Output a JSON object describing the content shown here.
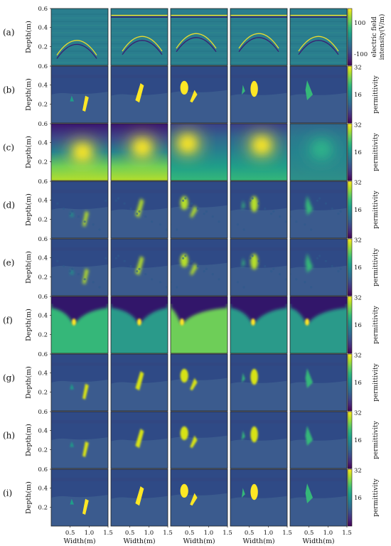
{
  "figure": {
    "colors": {
      "viridis": [
        "#440154",
        "#482878",
        "#3e4989",
        "#31688e",
        "#26828e",
        "#1f9e89",
        "#35b779",
        "#6ece58",
        "#b5de2b",
        "#fde725"
      ],
      "frame": "#222222"
    },
    "x_ticks": [
      "0.5",
      "1.0",
      "1.5"
    ],
    "x_label": "Width(m)",
    "y_ticks": [
      "0.6",
      "0.4",
      "0.2"
    ],
    "y_label": "Depth(m)",
    "rows": [
      {
        "label": "(a)",
        "kind": "bscan",
        "cbar_ticks": [
          "100",
          "-100"
        ],
        "cbar_label": "electric field intensity(V/m)"
      },
      {
        "label": "(b)",
        "kind": "truth",
        "cbar_ticks": [
          "32",
          "16"
        ],
        "cbar_label": "permittivity"
      },
      {
        "label": "(c)",
        "kind": "blob",
        "cbar_ticks": [
          "32",
          "16"
        ],
        "cbar_label": "permittivity"
      },
      {
        "label": "(d)",
        "kind": "blurry",
        "cbar_ticks": [
          "32",
          "16"
        ],
        "cbar_label": "permittivity"
      },
      {
        "label": "(e)",
        "kind": "blurry2",
        "cbar_ticks": [
          "32",
          "16"
        ],
        "cbar_label": "permittivity"
      },
      {
        "label": "(f)",
        "kind": "fway",
        "cbar_ticks": [
          "32",
          "16"
        ],
        "cbar_label": "permittivity"
      },
      {
        "label": "(g)",
        "kind": "good",
        "cbar_ticks": [
          "32",
          "16"
        ],
        "cbar_label": "permittivity"
      },
      {
        "label": "(h)",
        "kind": "good",
        "cbar_ticks": [
          "32",
          "16"
        ],
        "cbar_label": "permittivity"
      },
      {
        "label": "(i)",
        "kind": "truth",
        "cbar_ticks": [
          "32",
          "16"
        ],
        "cbar_label": "permittivity"
      }
    ]
  }
}
